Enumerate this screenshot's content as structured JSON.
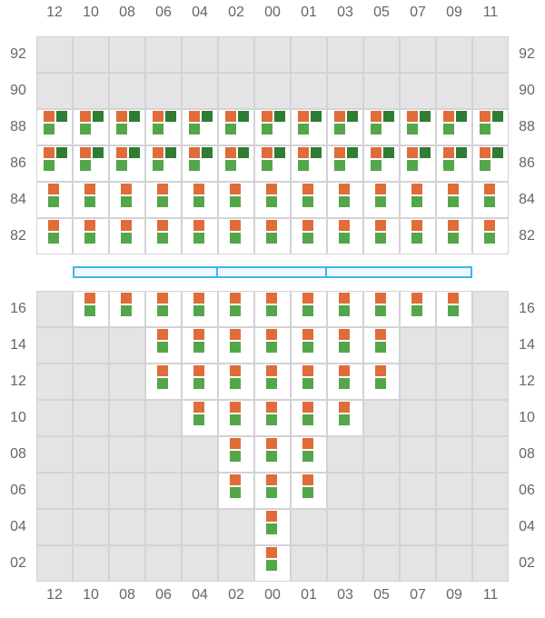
{
  "columns": [
    "12",
    "10",
    "08",
    "06",
    "04",
    "02",
    "00",
    "01",
    "03",
    "05",
    "07",
    "09",
    "11"
  ],
  "colors": {
    "empty": "#e4e4e7",
    "orange": "#e06c39",
    "dark_green": "#2e7d32",
    "light_green": "#54a64b",
    "bar_border": "#3db6ee",
    "bar_fill": "#eef6ff"
  },
  "top_section": [
    {
      "label": "92",
      "cells": "0000000000000"
    },
    {
      "label": "90",
      "cells": "0000000000000"
    },
    {
      "label": "88",
      "cells": "3333333333333"
    },
    {
      "label": "86",
      "cells": "3333333333333"
    },
    {
      "label": "84",
      "cells": "2222222222222"
    },
    {
      "label": "82",
      "cells": "2222222222222"
    }
  ],
  "bottom_section": [
    {
      "label": "16",
      "cells": "0222222222220"
    },
    {
      "label": "14",
      "cells": "0002222222000"
    },
    {
      "label": "12",
      "cells": "0002222222000"
    },
    {
      "label": "10",
      "cells": "0000222220000"
    },
    {
      "label": "08",
      "cells": "0000022200000"
    },
    {
      "label": "06",
      "cells": "0000022200000"
    },
    {
      "label": "04",
      "cells": "0000002000000"
    },
    {
      "label": "02",
      "cells": "0000002000000"
    }
  ],
  "legend_key": {
    "0": "empty",
    "2": "orange + light green",
    "3": "orange + dark green + light green"
  }
}
